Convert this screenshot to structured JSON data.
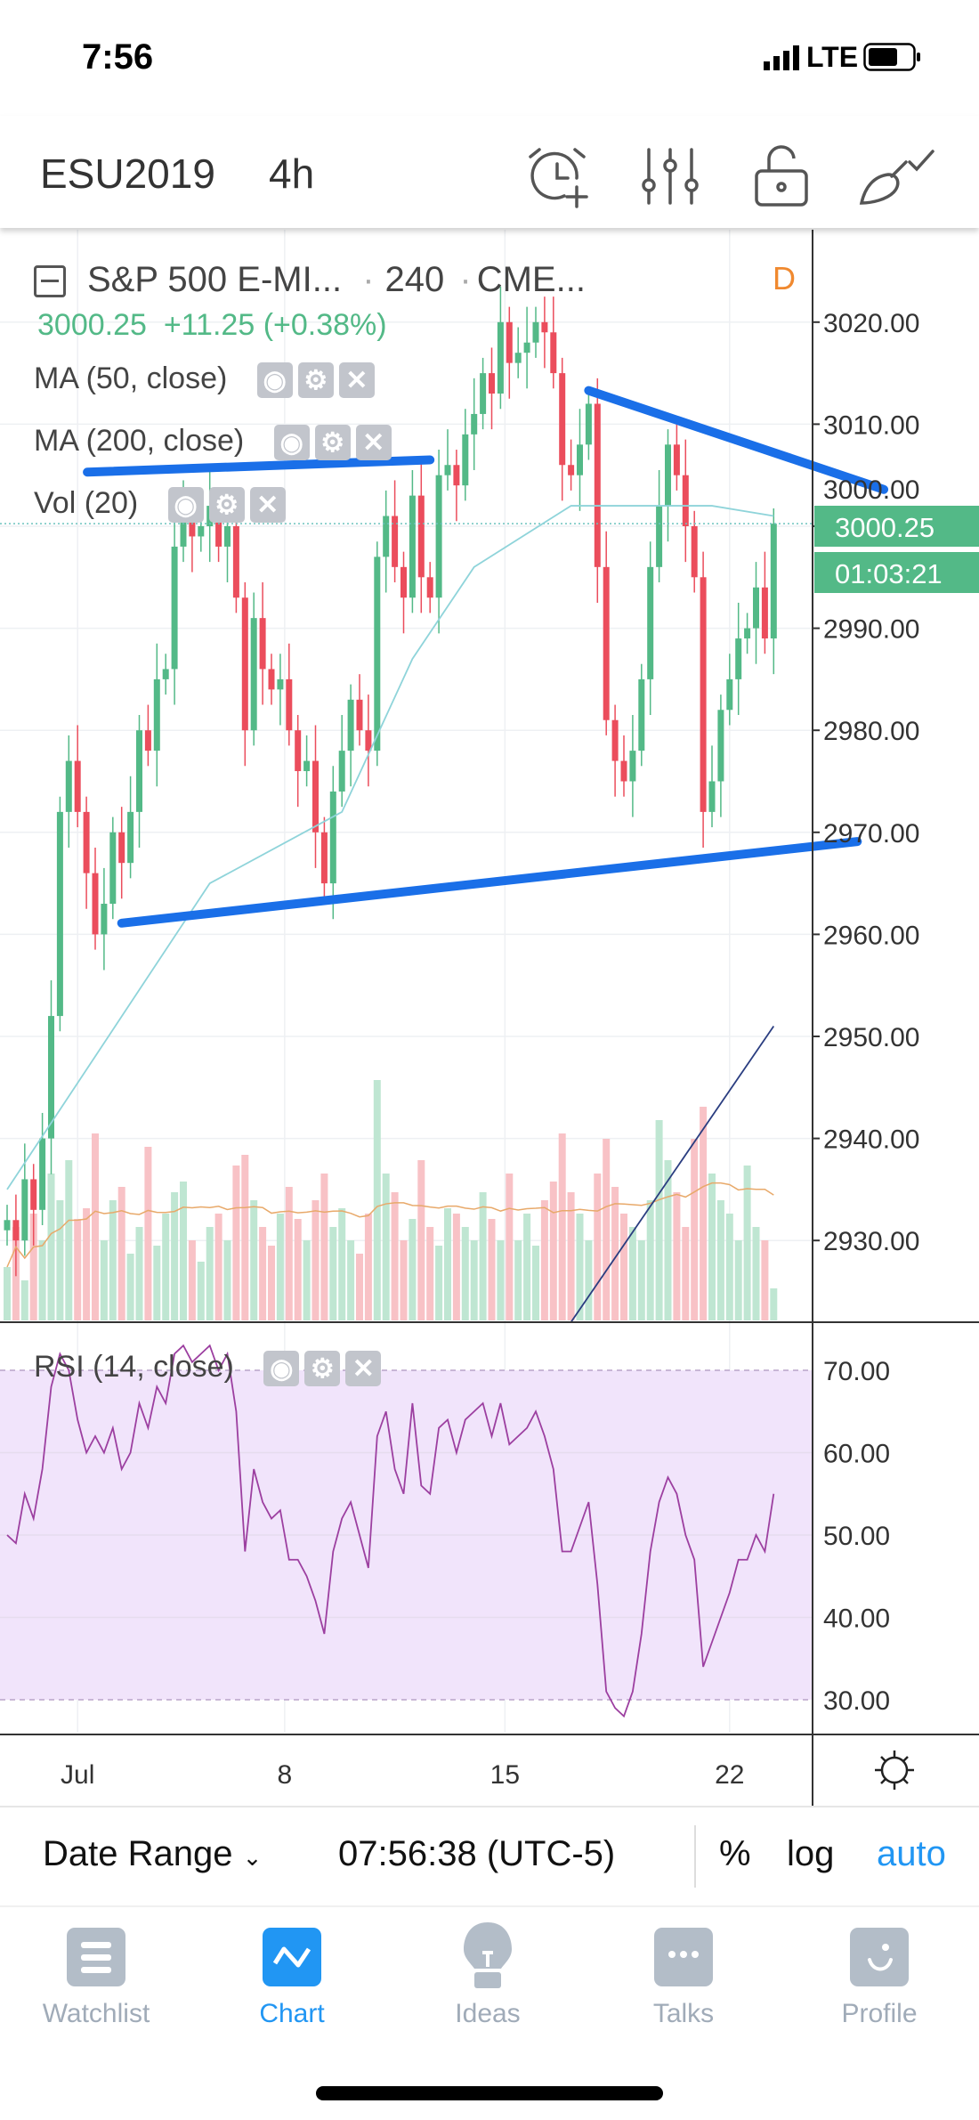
{
  "status_bar": {
    "time": "7:56",
    "network": "LTE"
  },
  "header": {
    "symbol": "ESU2019",
    "interval": "4h",
    "icons": [
      "alarm-add-icon",
      "indicators-icon",
      "unlock-icon",
      "drawing-brush-icon"
    ]
  },
  "legend": {
    "title": "S&P 500 E-MI...",
    "interval": "240",
    "exchange": "CME...",
    "session_badge": "D",
    "last_price": "3000.25",
    "change": "+11.25",
    "change_pct": "(+0.38%)",
    "indicators": [
      {
        "label": "MA (50, close)"
      },
      {
        "label": "MA (200, close)"
      },
      {
        "label": "Vol (20)"
      }
    ],
    "rsi_label": "RSI (14, close)"
  },
  "price_axis": {
    "ticks": [
      "3020.00",
      "3010.00",
      "3000.00",
      "2990.00",
      "2980.00",
      "2970.00",
      "2960.00",
      "2950.00",
      "2940.00",
      "2930.00"
    ],
    "current_price_tag": "3000.25",
    "countdown_tag": "01:03:21"
  },
  "rsi_axis": {
    "ticks": [
      "70.00",
      "60.00",
      "50.00",
      "40.00",
      "30.00"
    ]
  },
  "time_axis": {
    "ticks": [
      {
        "label": "Jul",
        "bar": 8
      },
      {
        "label": "8",
        "bar": 31.5
      },
      {
        "label": "15",
        "bar": 56.5
      },
      {
        "label": "22",
        "bar": 82
      }
    ]
  },
  "colors": {
    "up": "#53b987",
    "down": "#eb4d5c",
    "accent": "#2196f3",
    "rsi_line": "#9c3fa0",
    "rsi_band": "#f1e4fb",
    "ma50": "#8fd4da",
    "ma200": "#2a3d80",
    "vol_ma": "#e8a96a",
    "drawing": "#1a6fe8",
    "session_badge": "#f0892f"
  },
  "chart_data": {
    "type": "candlestick",
    "price_range": [
      2922,
      3032
    ],
    "close": [
      2932,
      2930,
      2936,
      2933,
      2940,
      2952,
      2972,
      2977,
      2972,
      2966,
      2960,
      2963,
      2970,
      2967,
      2972,
      2980,
      2978,
      2985,
      2986,
      2998,
      3001,
      2999,
      3000,
      3002,
      2998,
      3000,
      2993,
      2980,
      2991,
      2986,
      2984,
      2985,
      2980,
      2976,
      2977,
      2970,
      2965,
      2974,
      2978,
      2983,
      2980,
      2978,
      2997,
      3001,
      2996,
      2993,
      3003,
      2995,
      2993,
      3005,
      3006,
      3004,
      3009,
      3011,
      3015,
      3013,
      3020,
      3016,
      3017,
      3018,
      3020,
      3019,
      3015,
      3006,
      3005,
      3008,
      3012,
      2996,
      2981,
      2977,
      2975,
      2978,
      2985,
      2996,
      3002,
      3008,
      3005,
      3000,
      2995,
      2972,
      2975,
      2982,
      2985,
      2989,
      2990,
      2994,
      2989,
      3000.25
    ],
    "volume": [
      20,
      35,
      15,
      40,
      30,
      55,
      45,
      60,
      38,
      42,
      70,
      30,
      45,
      50,
      25,
      35,
      65,
      28,
      40,
      48,
      52,
      30,
      22,
      35,
      40,
      30,
      58,
      62,
      45,
      35,
      28,
      40,
      50,
      38,
      30,
      45,
      55,
      35,
      42,
      30,
      25,
      40,
      90,
      55,
      48,
      30,
      38,
      60,
      35,
      28,
      42,
      40,
      35,
      30,
      48,
      38,
      30,
      55,
      30,
      40,
      28,
      45,
      52,
      70,
      48,
      40,
      30,
      55,
      68,
      50,
      40,
      35,
      30,
      45,
      75,
      60,
      48,
      35,
      68,
      80,
      55,
      45,
      40,
      30,
      58,
      35,
      30,
      12
    ],
    "rsi": [
      50,
      49,
      55,
      52,
      58,
      68,
      72,
      70,
      64,
      60,
      62,
      60,
      63,
      58,
      60,
      66,
      63,
      68,
      66,
      72,
      73,
      71,
      72,
      73,
      70,
      72,
      65,
      48,
      58,
      54,
      52,
      53,
      47,
      47,
      45,
      42,
      38,
      48,
      52,
      54,
      50,
      46,
      62,
      65,
      58,
      55,
      66,
      56,
      55,
      63,
      64,
      60,
      64,
      65,
      66,
      62,
      66,
      61,
      62,
      63,
      65,
      62,
      58,
      48,
      48,
      51,
      54,
      44,
      31,
      29,
      28,
      31,
      38,
      48,
      54,
      57,
      55,
      50,
      47,
      34,
      37,
      40,
      43,
      47,
      47,
      50,
      48,
      55
    ],
    "rsi_range": [
      25,
      75
    ],
    "rsi_levels": [
      70,
      30
    ],
    "ma50": [
      [
        0,
        2935
      ],
      [
        23,
        2965
      ],
      [
        38,
        2972
      ],
      [
        46,
        2987
      ],
      [
        53,
        2996
      ],
      [
        64,
        3002
      ],
      [
        80,
        3002
      ],
      [
        87,
        3001
      ]
    ],
    "ma200": [
      [
        64,
        2922
      ],
      [
        87,
        2951
      ]
    ],
    "drawings": [
      [
        [
          9.1,
          3005.3
        ],
        [
          48,
          3006.5
        ]
      ],
      [
        [
          66,
          3013.3
        ],
        [
          99.5,
          3003.6
        ]
      ],
      [
        [
          13,
          2961.1
        ],
        [
          96.5,
          2969.1
        ]
      ]
    ]
  },
  "bottom_bar": {
    "date_range": "Date Range",
    "time": "07:56:38 (UTC-5)",
    "percent": "%",
    "log": "log",
    "auto": "auto"
  },
  "tabs": [
    {
      "label": "Watchlist",
      "icon": "list-icon"
    },
    {
      "label": "Chart",
      "icon": "chart-icon",
      "active": true
    },
    {
      "label": "Ideas",
      "icon": "lightbulb-icon"
    },
    {
      "label": "Talks",
      "icon": "chat-bubble-icon"
    },
    {
      "label": "Profile",
      "icon": "smiley-icon"
    }
  ]
}
